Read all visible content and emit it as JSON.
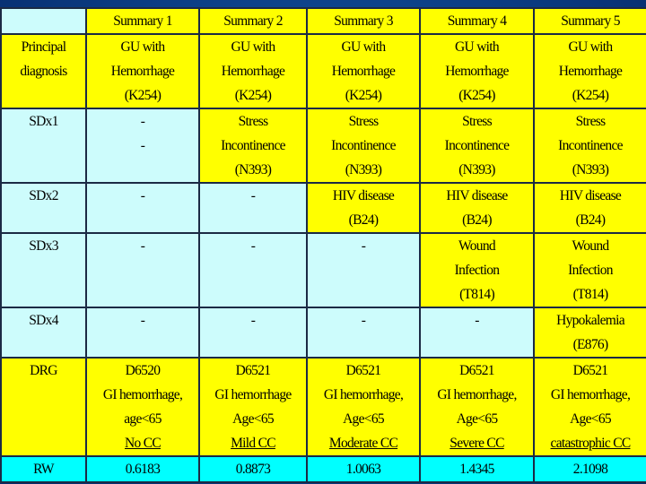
{
  "headers": [
    "",
    "Summary 1",
    "Summary 2",
    "Summary 3",
    "Summary 4",
    "Summary 5"
  ],
  "principal": {
    "label": [
      "Principal",
      "diagnosis"
    ],
    "cells": [
      [
        "GU with",
        "Hemorrhage",
        "(K254)"
      ],
      [
        "GU with",
        "Hemorrhage",
        "(K254)"
      ],
      [
        "GU with",
        "Hemorrhage",
        "(K254)"
      ],
      [
        "GU with",
        "Hemorrhage",
        "(K254)"
      ],
      [
        "GU with",
        "Hemorrhage",
        "(K254)"
      ]
    ]
  },
  "sdx1": {
    "label": "SDx1",
    "cells": [
      [
        "-",
        "-"
      ],
      [
        "Stress",
        "Incontinence",
        "(N393)"
      ],
      [
        "Stress",
        "Incontinence",
        "(N393)"
      ],
      [
        "Stress",
        "Incontinence",
        "(N393)"
      ],
      [
        "Stress",
        "Incontinence",
        "(N393)"
      ]
    ]
  },
  "sdx2": {
    "label": "SDx2",
    "cells": [
      [
        "-"
      ],
      [
        "-"
      ],
      [
        "HIV disease",
        "(B24)"
      ],
      [
        "HIV disease",
        "(B24)"
      ],
      [
        "HIV disease",
        "(B24)"
      ]
    ]
  },
  "sdx3": {
    "label": "SDx3",
    "cells": [
      [
        "-"
      ],
      [
        "-"
      ],
      [
        "-"
      ],
      [
        "Wound",
        "Infection",
        "(T814)"
      ],
      [
        "Wound",
        "Infection",
        "(T814)"
      ]
    ]
  },
  "sdx4": {
    "label": "SDx4",
    "cells": [
      [
        "-"
      ],
      [
        "-"
      ],
      [
        "-"
      ],
      [
        "-"
      ],
      [
        "Hypokalemia",
        "(E876)"
      ]
    ]
  },
  "drg": {
    "label": "DRG",
    "cells": [
      [
        "D6520",
        "GI hemorrhage,",
        "age<65",
        "No CC"
      ],
      [
        "D6521",
        "GI hemorrhage",
        "Age<65",
        "Mild CC"
      ],
      [
        "D6521",
        "GI hemorrhage,",
        "Age<65",
        "Moderate CC"
      ],
      [
        "D6521",
        "GI hemorrhage,",
        "Age<65",
        "Severe CC"
      ],
      [
        "D6521",
        "GI hemorrhage,",
        "Age<65",
        "catastrophic CC"
      ]
    ]
  },
  "rw": {
    "label": "RW",
    "cells": [
      "0.6183",
      "0.8873",
      "1.0063",
      "1.4345",
      "2.1098"
    ]
  },
  "colors": {
    "yellow": "#ffff00",
    "light_cyan": "#cdfcfc",
    "cyan": "#00ffff",
    "background": "#0c3f86"
  }
}
